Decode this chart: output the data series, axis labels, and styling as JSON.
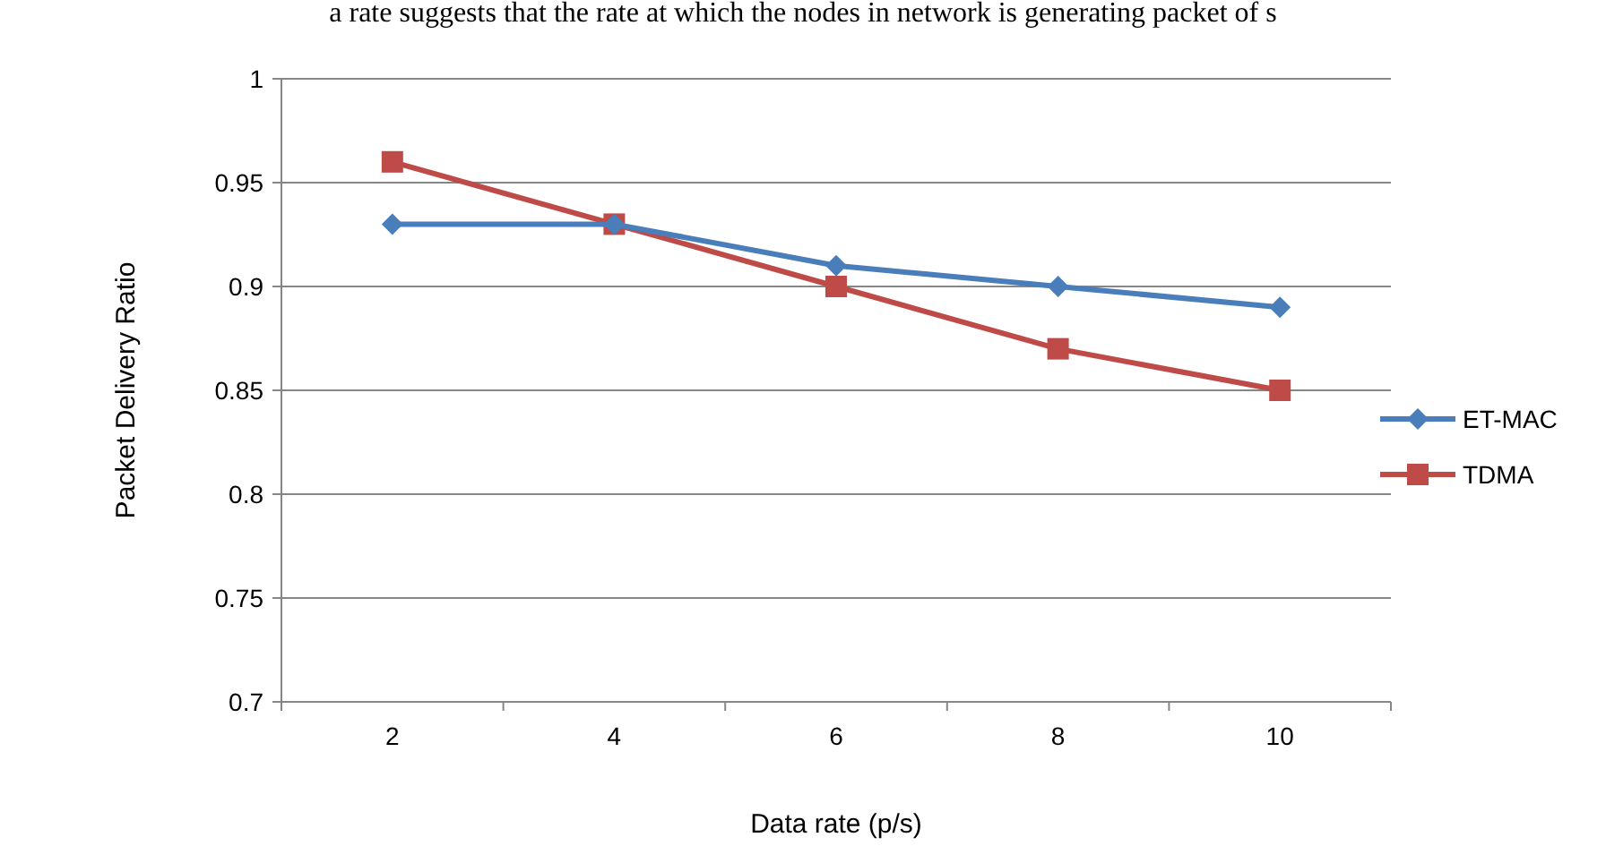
{
  "chart_data": {
    "type": "line",
    "annotations": [
      "a rate suggests that the rate at which the nodes in network is generating packet of s"
    ],
    "xlabel": "Data rate (p/s)",
    "ylabel": "Packet Delivery  Ratio",
    "categories": [
      "2",
      "4",
      "6",
      "8",
      "10"
    ],
    "series": [
      {
        "name": "ET-MAC",
        "color": "#4a7ebb",
        "marker": "diamond",
        "values": [
          0.93,
          0.93,
          0.91,
          0.9,
          0.89
        ]
      },
      {
        "name": "TDMA",
        "color": "#be4b48",
        "marker": "square",
        "values": [
          0.96,
          0.93,
          0.9,
          0.87,
          0.85
        ]
      }
    ],
    "ylim": [
      0.7,
      1
    ],
    "yticks": [
      {
        "value": 0.7,
        "label": "0.7"
      },
      {
        "value": 0.75,
        "label": "0.75"
      },
      {
        "value": 0.8,
        "label": "0.8"
      },
      {
        "value": 0.85,
        "label": "0.85"
      },
      {
        "value": 0.9,
        "label": "0.9"
      },
      {
        "value": 0.95,
        "label": "0.95"
      },
      {
        "value": 1,
        "label": "1"
      }
    ],
    "grid": "y",
    "legend": "right"
  }
}
